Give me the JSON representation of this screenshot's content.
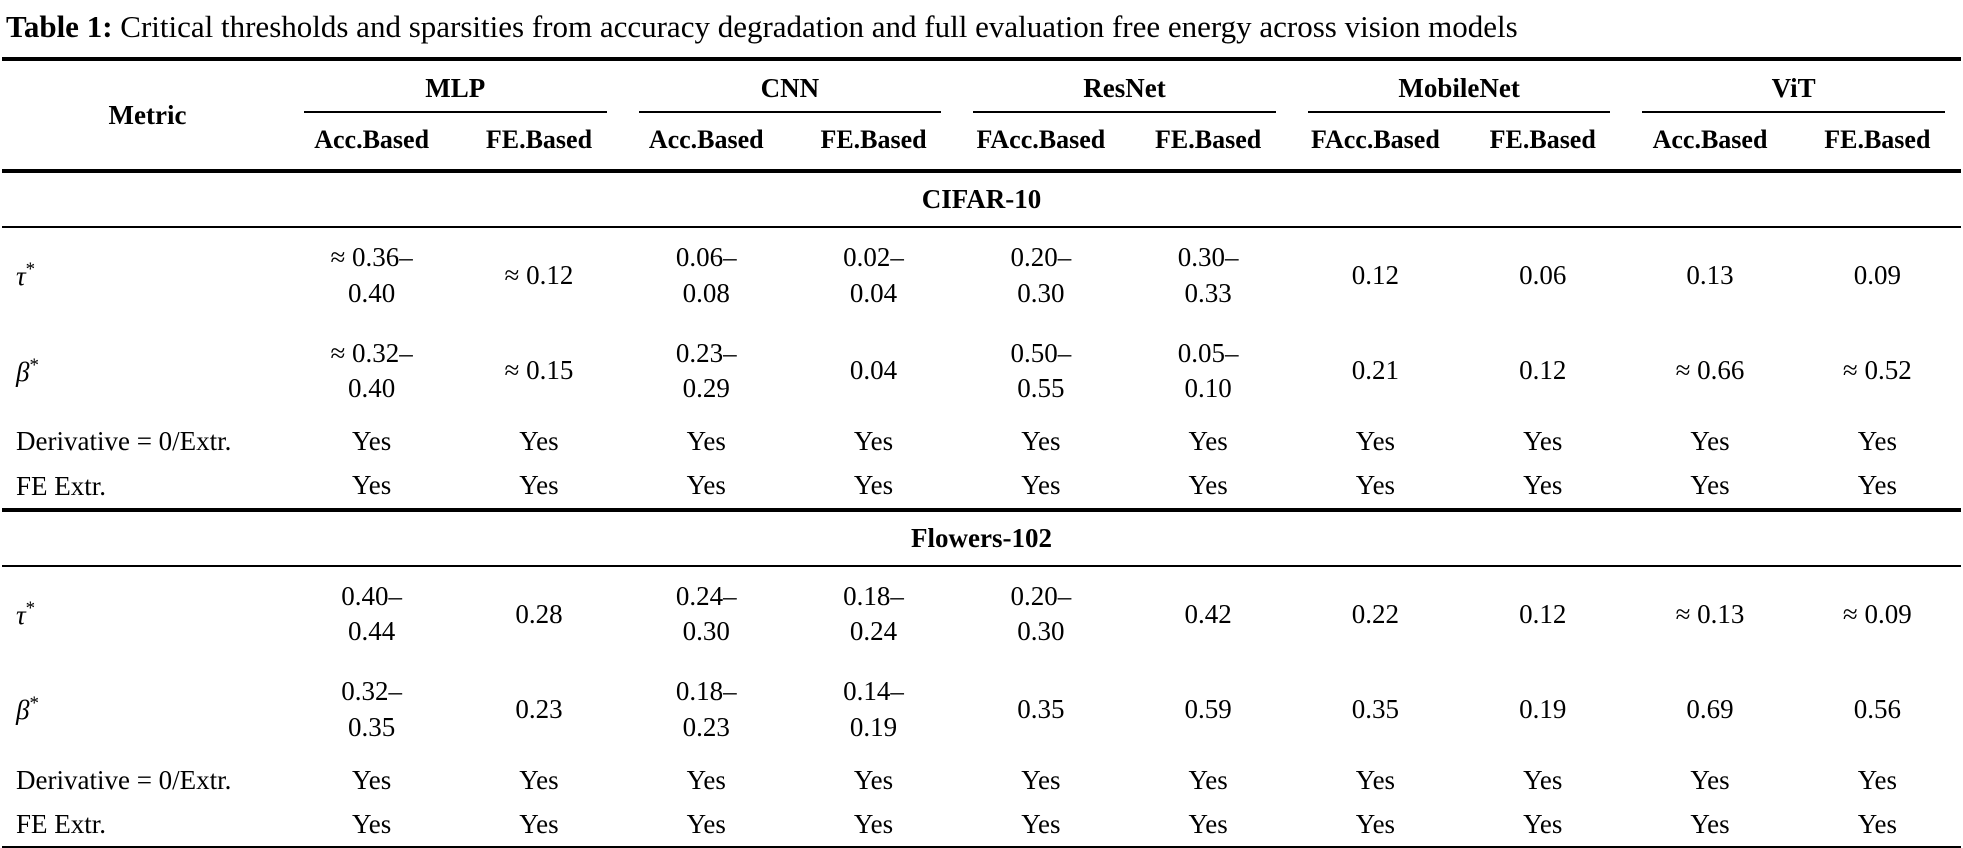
{
  "title": {
    "label": "Table 1:",
    "text": " Critical thresholds and sparsities from accuracy degradation and full evaluation free energy across vision models"
  },
  "table": {
    "metric_header": "Metric",
    "groups": [
      {
        "name": "MLP",
        "sub": [
          "Acc.Based",
          "FE.Based"
        ]
      },
      {
        "name": "CNN",
        "sub": [
          "Acc.Based",
          "FE.Based"
        ]
      },
      {
        "name": "ResNet",
        "sub": [
          "FAcc.Based",
          "FE.Based"
        ]
      },
      {
        "name": "MobileNet",
        "sub": [
          "FAcc.Based",
          "FE.Based"
        ]
      },
      {
        "name": "ViT",
        "sub": [
          "Acc.Based",
          "FE.Based"
        ]
      }
    ],
    "sections": [
      {
        "name": "CIFAR-10",
        "rows": [
          {
            "metric": {
              "text": "τ",
              "sup": "*"
            },
            "values": [
              "≈ 0.36–\n0.40",
              "≈ 0.12",
              "0.06–\n0.08",
              "0.02–\n0.04",
              "0.20–\n0.30",
              "0.30–\n0.33",
              "0.12",
              "0.06",
              "0.13",
              "0.09"
            ]
          },
          {
            "metric": {
              "text": "β",
              "sup": "*"
            },
            "values": [
              "≈ 0.32–\n0.40",
              "≈ 0.15",
              "0.23–\n0.29",
              "0.04",
              "0.50–\n0.55",
              "0.05–\n0.10",
              "0.21",
              "0.12",
              "≈ 0.66",
              "≈ 0.52"
            ]
          },
          {
            "metric": {
              "text": "Derivative = 0/Extr."
            },
            "values": [
              "Yes",
              "Yes",
              "Yes",
              "Yes",
              "Yes",
              "Yes",
              "Yes",
              "Yes",
              "Yes",
              "Yes"
            ]
          },
          {
            "metric": {
              "text": "FE Extr."
            },
            "values": [
              "Yes",
              "Yes",
              "Yes",
              "Yes",
              "Yes",
              "Yes",
              "Yes",
              "Yes",
              "Yes",
              "Yes"
            ]
          }
        ]
      },
      {
        "name": "Flowers-102",
        "rows": [
          {
            "metric": {
              "text": "τ",
              "sup": "*"
            },
            "values": [
              "0.40–\n0.44",
              "0.28",
              "0.24–\n0.30",
              "0.18–\n0.24",
              "0.20–\n0.30",
              "0.42",
              "0.22",
              "0.12",
              "≈ 0.13",
              "≈ 0.09"
            ]
          },
          {
            "metric": {
              "text": "β",
              "sup": "*"
            },
            "values": [
              "0.32–\n0.35",
              "0.23",
              "0.18–\n0.23",
              "0.14–\n0.19",
              "0.35",
              "0.59",
              "0.35",
              "0.19",
              "0.69",
              "0.56"
            ]
          },
          {
            "metric": {
              "text": "Derivative = 0/Extr."
            },
            "values": [
              "Yes",
              "Yes",
              "Yes",
              "Yes",
              "Yes",
              "Yes",
              "Yes",
              "Yes",
              "Yes",
              "Yes"
            ]
          },
          {
            "metric": {
              "text": "FE Extr."
            },
            "values": [
              "Yes",
              "Yes",
              "Yes",
              "Yes",
              "Yes",
              "Yes",
              "Yes",
              "Yes",
              "Yes",
              "Yes"
            ]
          }
        ]
      }
    ]
  }
}
